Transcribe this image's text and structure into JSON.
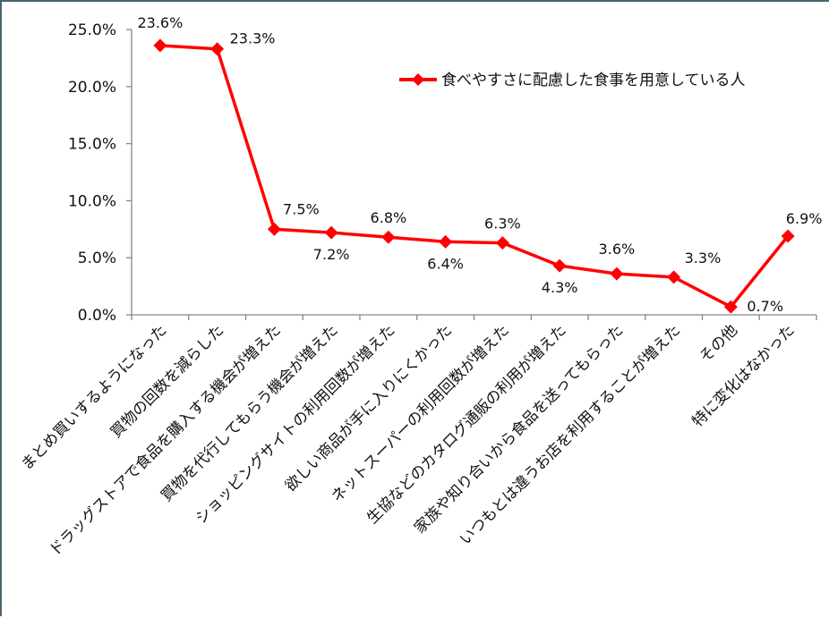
{
  "chart_data": {
    "type": "line",
    "title": "",
    "xlabel": "",
    "ylabel": "",
    "ylim": [
      0,
      25
    ],
    "yticks": [
      "0.0%",
      "5.0%",
      "10.0%",
      "15.0%",
      "20.0%",
      "25.0%"
    ],
    "grid": false,
    "legend_position": "top-right (inside plot)",
    "categories": [
      "まとめ買いするようになった",
      "買物の回数を減らした",
      "ドラッグストアで食品を購入する機会が増えた",
      "買物を代行してもらう機会が増えた",
      "ショッピングサイトの利用回数が増えた",
      "欲しい商品が手に入りにくかった",
      "ネットスーパーの利用回数が増えた",
      "生協などのカタログ通販の利用が増えた",
      "家族や知り合いから食品を送ってもらった",
      "いつもとは違うお店を利用することが増えた",
      "その他",
      "特に変化はなかった"
    ],
    "series": [
      {
        "name": "食べやすさに配慮した食事を用意している人",
        "color": "#ff0000",
        "marker": "diamond",
        "values": [
          23.6,
          23.3,
          7.5,
          7.2,
          6.8,
          6.4,
          6.3,
          4.3,
          3.6,
          3.3,
          0.7,
          6.9
        ],
        "labels": [
          "23.6%",
          "23.3%",
          "7.5%",
          "7.2%",
          "6.8%",
          "6.4%",
          "6.3%",
          "4.3%",
          "3.6%",
          "3.3%",
          "0.7%",
          "6.9%"
        ]
      }
    ]
  },
  "legend": {
    "label": "食べやすさに配慮した食事を用意している人"
  },
  "colors": {
    "series": "#ff0000",
    "axis": "#868686",
    "frame": "#4a6470",
    "text": "#111111"
  }
}
